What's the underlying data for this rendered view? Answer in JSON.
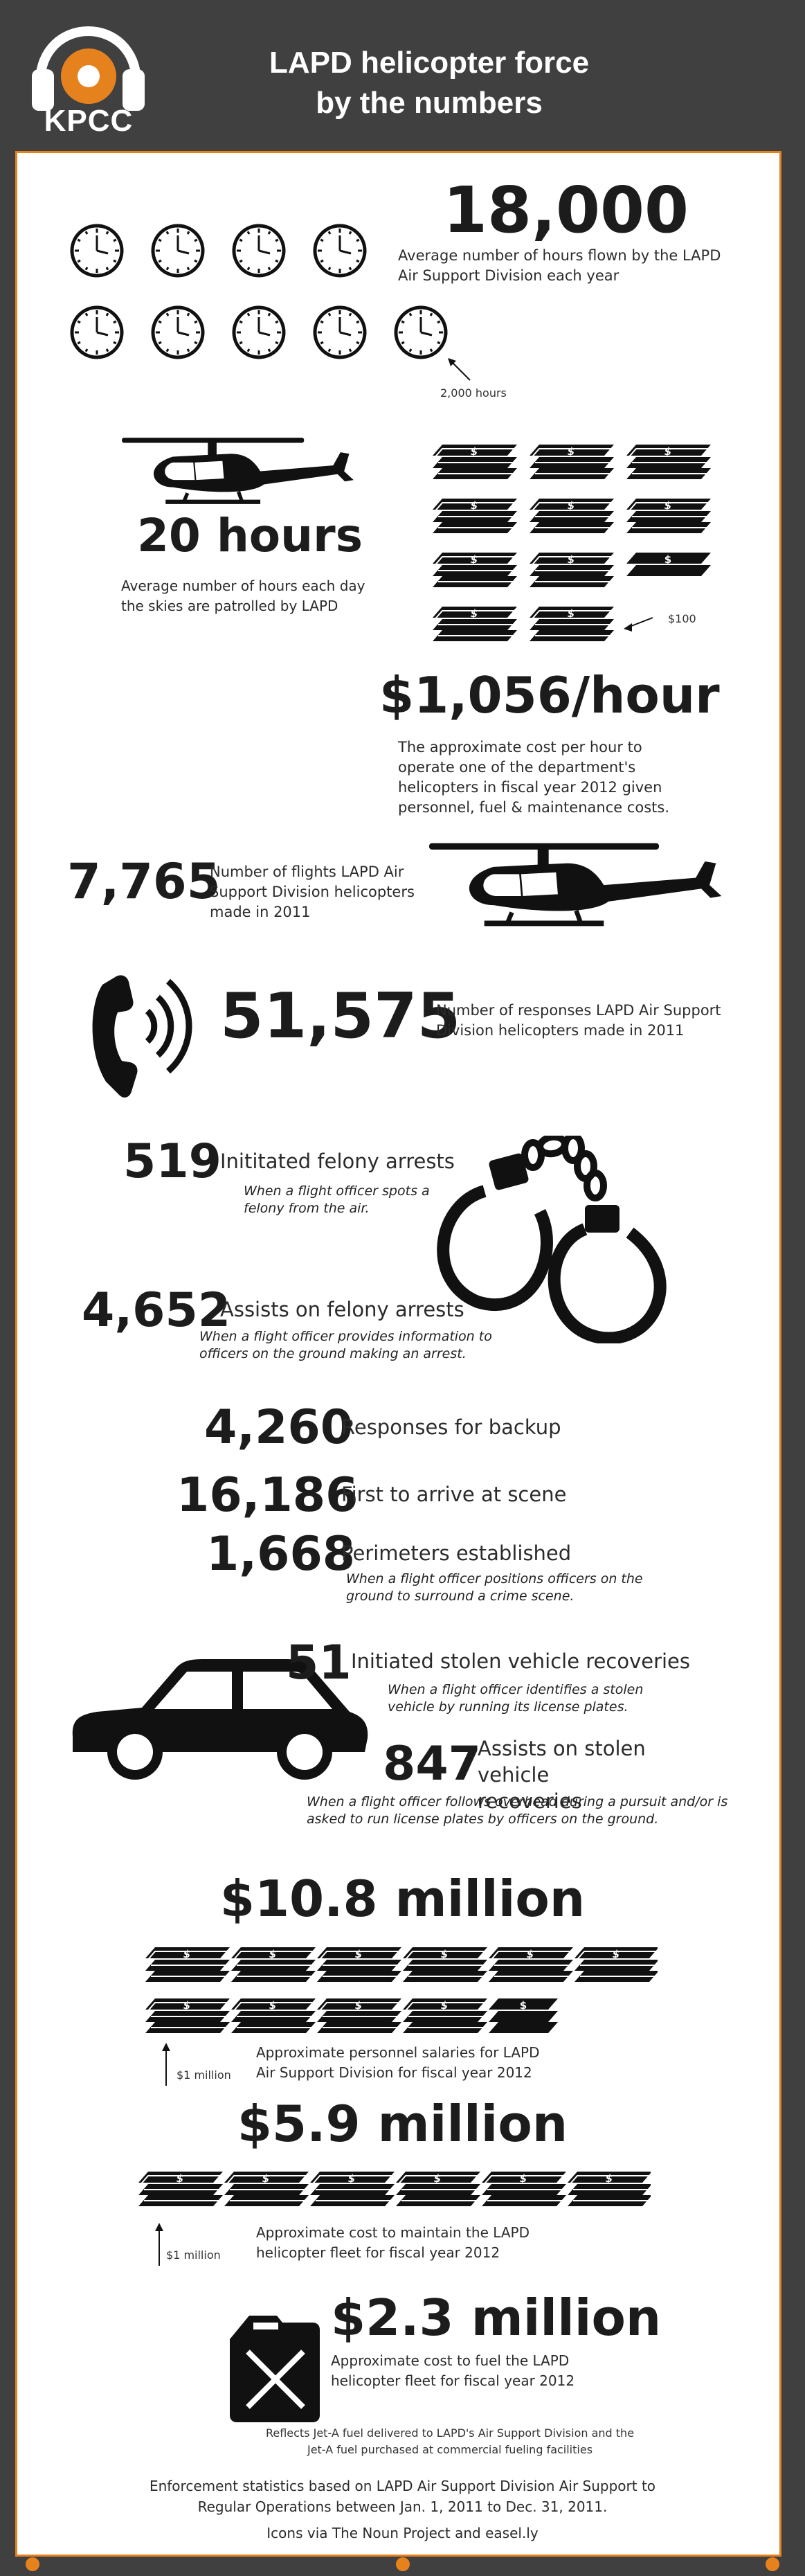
{
  "header": {
    "title": "LAPD helicopter force\nby the numbers",
    "logo_text": "KPCC"
  },
  "hours_per_year": {
    "value": "18,000",
    "desc": "Average number of hours flown by the LAPD Air Support Division each year",
    "clock_note": "2,000 hours"
  },
  "hours_per_day": {
    "value": "20 hours",
    "desc": "Average number of hours each day the skies are patrolled by LAPD"
  },
  "cost_per_hour": {
    "value": "$1,056/hour",
    "desc": "The approximate cost per hour to operate one of the department's helicopters in fiscal year 2012 given personnel, fuel & maintenance costs.",
    "stack_note": "$100"
  },
  "flights": {
    "value": "7,765",
    "desc": "Number of flights LAPD Air Support Division helicopters made in 2011"
  },
  "responses": {
    "value": "51,575",
    "desc": "Number of responses LAPD Air Support Division helicopters made in 2011"
  },
  "felony_initiated": {
    "value": "519",
    "label": "Inititated felony arrests",
    "note": "When a flight officer spots a felony from the air."
  },
  "felony_assists": {
    "value": "4,652",
    "label": "Assists on felony arrests",
    "note": "When a flight officer provides information to officers on the ground making an arrest."
  },
  "backup": {
    "value": "4,260",
    "label": "Responses for backup"
  },
  "first_arrive": {
    "value": "16,186",
    "label": "First to arrive at scene"
  },
  "perimeters": {
    "value": "1,668",
    "label": "Perimeters established",
    "note": "When a flight officer positions officers on the ground to surround a crime scene."
  },
  "stolen_initiated": {
    "value": "51",
    "label": "Initiated stolen vehicle recoveries",
    "note": "When a flight officer identifies a stolen vehicle by running its license plates."
  },
  "stolen_assists": {
    "value": "847",
    "label": "Assists on stolen vehicle recoveries",
    "note": "When a flight officer follows overhead during a pursuit and/or is asked to run license plates by officers on the ground."
  },
  "salaries": {
    "value": "$10.8 million",
    "desc": "Approximate personnel salaries for LAPD Air Support Division for fiscal year 2012",
    "stack_note": "$1 million"
  },
  "maintenance": {
    "value": "$5.9 million",
    "desc": "Approximate cost to maintain the LAPD helicopter fleet for fiscal year 2012",
    "stack_note": "$1 million"
  },
  "fuel": {
    "value": "$2.3 million",
    "desc": "Approximate cost to fuel the LAPD helicopter fleet for fiscal year 2012",
    "note": "Reflects Jet-A fuel delivered to LAPD's Air Support Division and the Jet-A fuel purchased at commercial fueling facilities"
  },
  "footer": {
    "line1": "Enforcement statistics based on LAPD Air Support Division Air Support to",
    "line2": "Regular Operations between Jan. 1, 2011 to Dec. 31, 2011.",
    "line3": "Icons via The Noun Project and easel.ly"
  },
  "colors": {
    "background": "#404041",
    "accent": "#e6821e",
    "panel": "#ffffff",
    "ink": "#1c1c1c"
  },
  "icons": [
    "headphones-logo-icon",
    "clock-icon",
    "helicopter-icon",
    "money-stack-icon",
    "phone-icon",
    "handcuffs-icon",
    "car-icon",
    "fuel-can-icon"
  ]
}
